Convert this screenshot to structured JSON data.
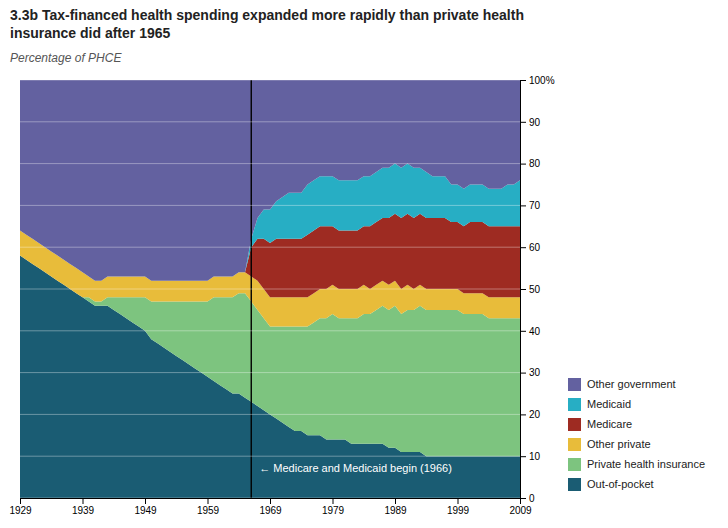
{
  "chart_data": {
    "type": "area",
    "stacked": true,
    "title": "3.3b Tax-financed health spending expanded more rapidly than private health\ninsurance did after 1965",
    "subtitle": "Percentage of PHCE",
    "x": [
      1929,
      1930,
      1931,
      1932,
      1933,
      1934,
      1935,
      1936,
      1937,
      1938,
      1939,
      1940,
      1941,
      1942,
      1943,
      1944,
      1945,
      1946,
      1947,
      1948,
      1949,
      1950,
      1951,
      1952,
      1953,
      1954,
      1955,
      1956,
      1957,
      1958,
      1959,
      1960,
      1961,
      1962,
      1963,
      1964,
      1965,
      1966,
      1967,
      1968,
      1969,
      1970,
      1971,
      1972,
      1973,
      1974,
      1975,
      1976,
      1977,
      1978,
      1979,
      1980,
      1981,
      1982,
      1983,
      1984,
      1985,
      1986,
      1987,
      1988,
      1989,
      1990,
      1991,
      1992,
      1993,
      1994,
      1995,
      1996,
      1997,
      1998,
      1999,
      2000,
      2001,
      2002,
      2003,
      2004,
      2005,
      2006,
      2007,
      2008,
      2009
    ],
    "series": [
      {
        "name": "Out-of-pocket",
        "color": "#1a5c73",
        "values": [
          58,
          57,
          56,
          55,
          54,
          53,
          52,
          51,
          50,
          49,
          48,
          47,
          46,
          46,
          46,
          45,
          44,
          43,
          42,
          41,
          40,
          38,
          37,
          36,
          35,
          34,
          33,
          32,
          31,
          30,
          29,
          28,
          27,
          26,
          25,
          25,
          24,
          23,
          22,
          21,
          20,
          19,
          18,
          17,
          16,
          16,
          15,
          15,
          15,
          14,
          14,
          14,
          14,
          13,
          13,
          13,
          13,
          13,
          13,
          12,
          12,
          11,
          11,
          11,
          11,
          10,
          10,
          10,
          10,
          10,
          10,
          10,
          10,
          10,
          10,
          10,
          10,
          10,
          10,
          10,
          10
        ]
      },
      {
        "name": "Private health insurance",
        "color": "#7dc47f",
        "values": [
          0,
          0,
          0,
          0,
          0,
          0,
          0,
          0,
          0,
          0,
          0,
          1,
          1,
          1,
          2,
          3,
          4,
          5,
          6,
          7,
          8,
          9,
          10,
          11,
          12,
          13,
          14,
          15,
          16,
          17,
          18,
          20,
          21,
          22,
          23,
          24,
          25,
          24,
          23,
          22,
          21,
          22,
          23,
          24,
          25,
          25,
          26,
          27,
          28,
          29,
          30,
          29,
          29,
          30,
          30,
          31,
          31,
          32,
          33,
          33,
          34,
          33,
          34,
          34,
          35,
          35,
          35,
          35,
          35,
          35,
          35,
          34,
          34,
          34,
          34,
          33,
          33,
          33,
          33,
          33,
          33
        ]
      },
      {
        "name": "Other private",
        "color": "#e8bc3a",
        "values": [
          6,
          6,
          6,
          6,
          6,
          6,
          6,
          6,
          6,
          6,
          6,
          5,
          5,
          5,
          5,
          5,
          5,
          5,
          5,
          5,
          5,
          5,
          5,
          5,
          5,
          5,
          5,
          5,
          5,
          5,
          5,
          5,
          5,
          5,
          5,
          5,
          5,
          6,
          7,
          7,
          7,
          7,
          7,
          7,
          7,
          7,
          7,
          7,
          7,
          7,
          7,
          7,
          7,
          7,
          7,
          7,
          6,
          6,
          6,
          6,
          6,
          6,
          6,
          5,
          5,
          5,
          5,
          5,
          5,
          5,
          5,
          5,
          5,
          5,
          5,
          5,
          5,
          5,
          5,
          5,
          5
        ]
      },
      {
        "name": "Medicare",
        "color": "#9e2b22",
        "values": [
          0,
          0,
          0,
          0,
          0,
          0,
          0,
          0,
          0,
          0,
          0,
          0,
          0,
          0,
          0,
          0,
          0,
          0,
          0,
          0,
          0,
          0,
          0,
          0,
          0,
          0,
          0,
          0,
          0,
          0,
          0,
          0,
          0,
          0,
          0,
          0,
          0,
          7,
          10,
          12,
          13,
          14,
          14,
          14,
          14,
          14,
          15,
          15,
          15,
          15,
          14,
          14,
          14,
          14,
          14,
          14,
          15,
          15,
          15,
          16,
          16,
          17,
          17,
          17,
          17,
          17,
          17,
          17,
          17,
          16,
          16,
          16,
          17,
          17,
          17,
          17,
          17,
          17,
          17,
          17,
          17
        ]
      },
      {
        "name": "Medicaid",
        "color": "#27aec4",
        "values": [
          0,
          0,
          0,
          0,
          0,
          0,
          0,
          0,
          0,
          0,
          0,
          0,
          0,
          0,
          0,
          0,
          0,
          0,
          0,
          0,
          0,
          0,
          0,
          0,
          0,
          0,
          0,
          0,
          0,
          0,
          0,
          0,
          0,
          0,
          0,
          0,
          0,
          2,
          5,
          7,
          8,
          9,
          10,
          11,
          11,
          11,
          12,
          12,
          12,
          12,
          12,
          12,
          12,
          12,
          12,
          12,
          12,
          12,
          12,
          12,
          12,
          12,
          12,
          12,
          11,
          11,
          10,
          10,
          10,
          9,
          9,
          9,
          9,
          9,
          9,
          9,
          9,
          9,
          10,
          10,
          11
        ]
      },
      {
        "name": "Other government",
        "color": "#6361a0",
        "values": [
          36,
          37,
          38,
          39,
          40,
          41,
          42,
          43,
          44,
          45,
          46,
          47,
          48,
          48,
          47,
          47,
          47,
          47,
          47,
          47,
          47,
          48,
          48,
          48,
          48,
          48,
          48,
          48,
          48,
          48,
          48,
          47,
          47,
          47,
          47,
          46,
          46,
          38,
          33,
          31,
          31,
          29,
          28,
          27,
          27,
          27,
          25,
          24,
          23,
          23,
          23,
          24,
          24,
          24,
          24,
          23,
          23,
          22,
          21,
          21,
          20,
          21,
          20,
          21,
          21,
          22,
          23,
          23,
          23,
          25,
          25,
          26,
          25,
          25,
          25,
          26,
          26,
          26,
          25,
          25,
          24
        ]
      }
    ],
    "xlim": [
      1929,
      2009
    ],
    "ylim": [
      0,
      100
    ],
    "xticks": [
      1929,
      1939,
      1949,
      1959,
      1969,
      1979,
      1989,
      1999,
      2009
    ],
    "yticks": [
      0,
      10,
      20,
      30,
      40,
      50,
      60,
      70,
      80,
      90,
      {
        "value": 100,
        "label": "100%"
      }
    ],
    "grid": true,
    "legend": "right",
    "annotations": [
      {
        "text": "← Medicare and Medicaid begin (1966)",
        "x": 1966,
        "y": 7
      }
    ]
  }
}
